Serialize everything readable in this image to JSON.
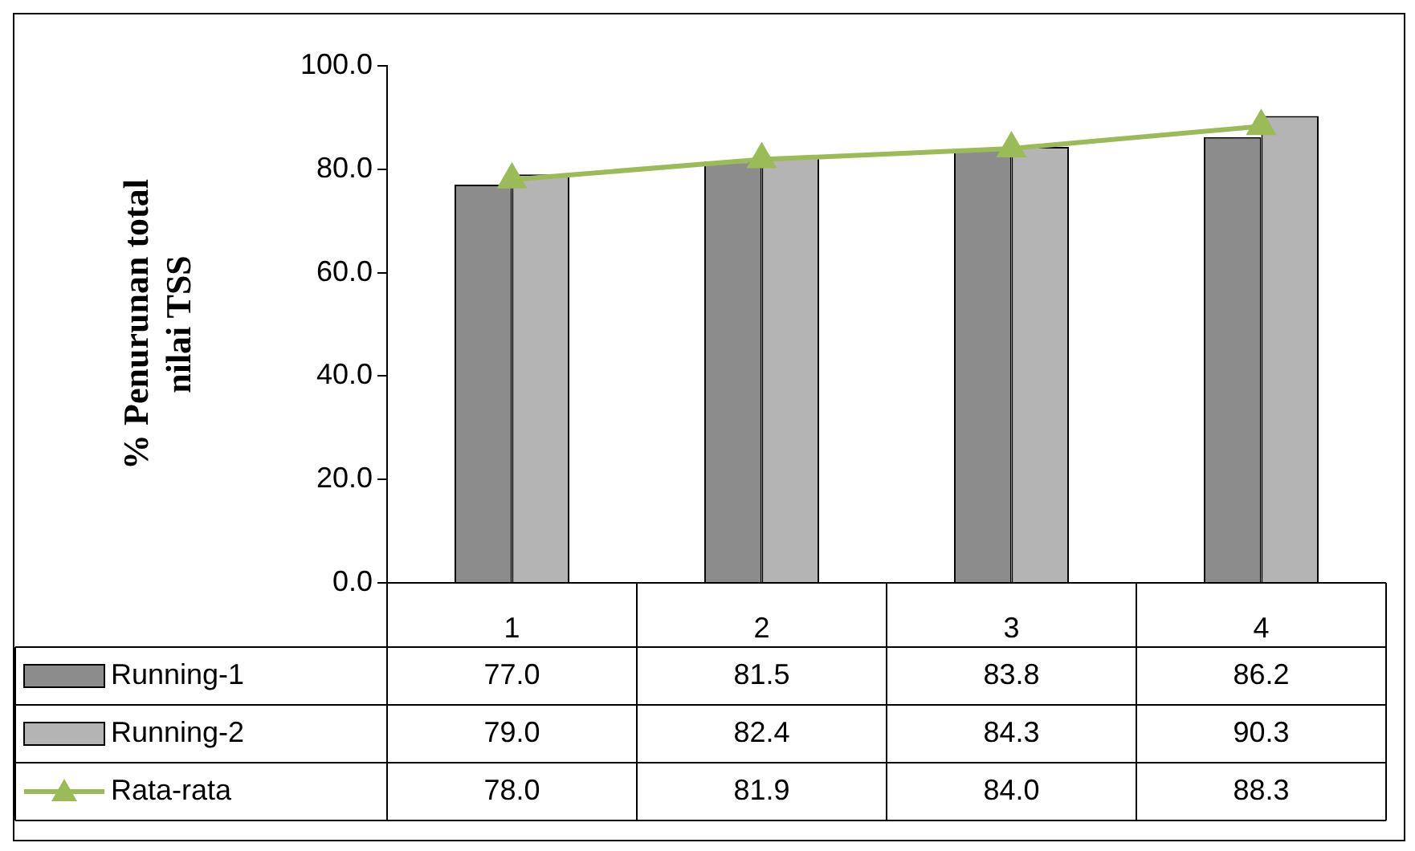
{
  "chart_data": {
    "type": "bar",
    "ylabel": "% Penurunan total nilai TSS",
    "categories": [
      "1",
      "2",
      "3",
      "4"
    ],
    "series": [
      {
        "name": "Running-1",
        "color": "#8c8c8c",
        "values": [
          77.0,
          81.5,
          83.8,
          86.2
        ],
        "value_labels": [
          "77.0",
          "81.5",
          "83.8",
          "86.2"
        ]
      },
      {
        "name": "Running-2",
        "color": "#b4b4b4",
        "values": [
          79.0,
          82.4,
          84.3,
          90.3
        ],
        "value_labels": [
          "79.0",
          "82.4",
          "84.3",
          "90.3"
        ]
      },
      {
        "name": "Rata-rata",
        "type": "line",
        "color": "#9bbb59",
        "marker": "triangle",
        "values": [
          78.0,
          81.9,
          84.0,
          88.3
        ],
        "value_labels": [
          "78.0",
          "81.9",
          "84.0",
          "88.3"
        ]
      }
    ],
    "ylim": [
      0,
      100
    ],
    "yticks": [
      {
        "value": 0,
        "label": "0.0"
      },
      {
        "value": 20,
        "label": "20.0"
      },
      {
        "value": 40,
        "label": "40.0"
      },
      {
        "value": 60,
        "label": "60.0"
      },
      {
        "value": 80,
        "label": "80.0"
      },
      {
        "value": 100,
        "label": "100.0"
      }
    ],
    "grid": false,
    "legend": "bottom"
  }
}
